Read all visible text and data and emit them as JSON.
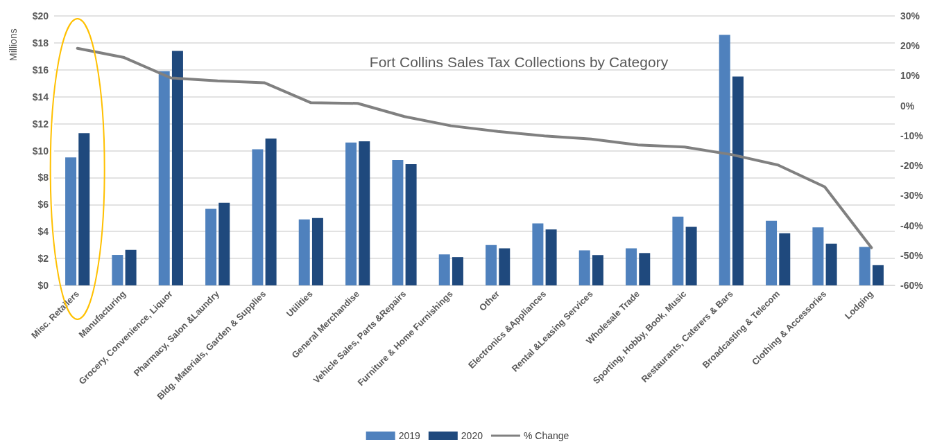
{
  "chart_data": {
    "type": "bar",
    "title": "Fort Collins Sales Tax Collections by Category",
    "ylabel": "Millions",
    "categories": [
      "Misc. Retailers",
      "Manufacturing",
      "Grocery, Convenience, Liquor",
      "Pharmacy, Salon &Laundry",
      "Bldg. Materials, Garden & Supplies",
      "Utilities",
      "General Merchandise",
      "Vehicle Sales, Parts &Repairs",
      "Furniture & Home Furnishings",
      "Other",
      "Electronics &Appliances",
      "Rental &Leasing Services",
      "Wholesale Trade",
      "Sporting, Hobby, Book, Music",
      "Restaurants, Caterers & Bars",
      "Broadcasting & Telecom",
      "Clothing & Accessories",
      "Lodging"
    ],
    "series": [
      {
        "name": "2019",
        "color": "#4f81bd",
        "values": [
          9.5,
          2.26,
          15.9,
          5.68,
          10.1,
          4.9,
          10.6,
          9.3,
          2.3,
          3.0,
          4.6,
          2.6,
          2.75,
          5.1,
          18.6,
          4.8,
          4.3,
          2.85
        ]
      },
      {
        "name": "2020",
        "color": "#1f497d",
        "values": [
          11.3,
          2.63,
          17.4,
          6.13,
          10.9,
          5.0,
          10.7,
          9.0,
          2.1,
          2.75,
          4.15,
          2.25,
          2.4,
          4.35,
          15.5,
          3.87,
          3.1,
          1.5
        ]
      },
      {
        "name": "% Change",
        "type": "line",
        "axis": "y2",
        "color": "#808080",
        "values": [
          19.2,
          16.1,
          9.3,
          8.3,
          7.7,
          1.0,
          0.8,
          -3.6,
          -6.7,
          -8.6,
          -10.1,
          -11.1,
          -13.1,
          -13.8,
          -16.3,
          -19.8,
          -27.1,
          -47.4
        ]
      }
    ],
    "ylim": [
      0,
      20
    ],
    "yticks": [
      {
        "value": 0,
        "label": "$0"
      },
      {
        "value": 2,
        "label": "$2"
      },
      {
        "value": 4,
        "label": "$4"
      },
      {
        "value": 6,
        "label": "$6"
      },
      {
        "value": 8,
        "label": "$8"
      },
      {
        "value": 10,
        "label": "$10"
      },
      {
        "value": 12,
        "label": "$12"
      },
      {
        "value": 14,
        "label": "$14"
      },
      {
        "value": 16,
        "label": "$16"
      },
      {
        "value": 18,
        "label": "$18"
      },
      {
        "value": 20,
        "label": "$20"
      }
    ],
    "y2lim": [
      -60,
      30
    ],
    "y2ticks": [
      {
        "value": -60,
        "label": "-60%"
      },
      {
        "value": -50,
        "label": "-50%"
      },
      {
        "value": -40,
        "label": "-40%"
      },
      {
        "value": -30,
        "label": "-30%"
      },
      {
        "value": -20,
        "label": "-20%"
      },
      {
        "value": -10,
        "label": "-10%"
      },
      {
        "value": 0,
        "label": "0%"
      },
      {
        "value": 10,
        "label": "10%"
      },
      {
        "value": 20,
        "label": "20%"
      },
      {
        "value": 30,
        "label": "30%"
      }
    ],
    "grid": "y",
    "legend": "bottom",
    "marker": "none",
    "line_style": "solid"
  }
}
